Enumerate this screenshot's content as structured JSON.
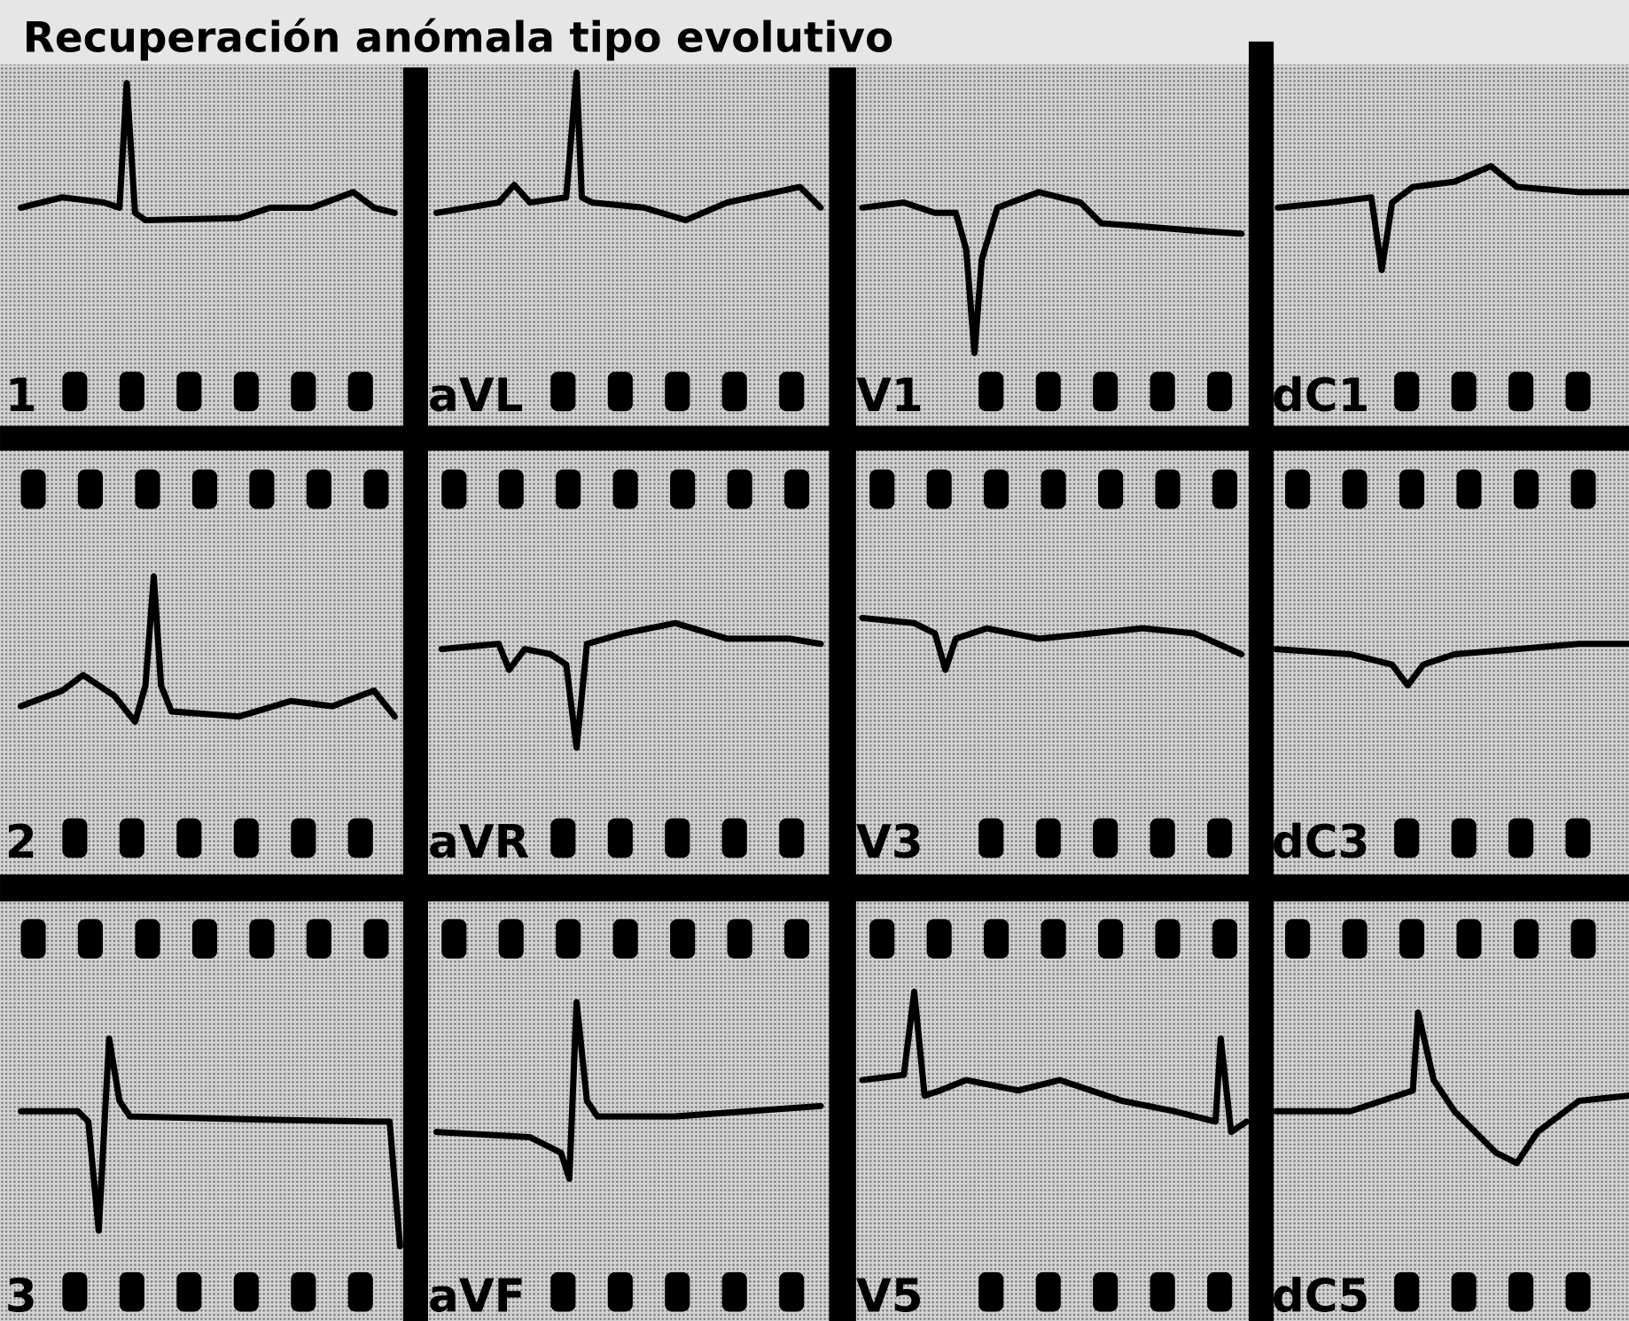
{
  "title": "Recuperación anómala tipo evolutivo",
  "leads": [
    [
      "1",
      "aVL",
      "V1",
      "dC1"
    ],
    [
      "2",
      "aVR",
      "V3",
      "dC3"
    ],
    [
      "3",
      "aVF",
      "V5",
      "dC5"
    ]
  ]
}
